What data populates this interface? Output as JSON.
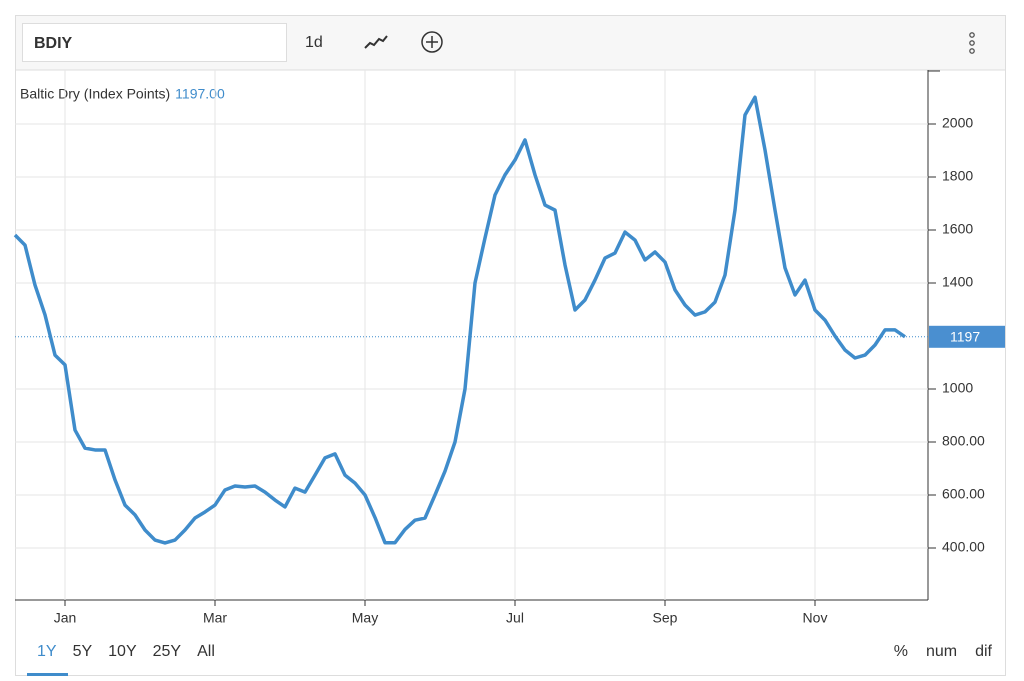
{
  "toolbar": {
    "symbol": "BDIY",
    "interval": "1d"
  },
  "range_buttons": [
    "1Y",
    "5Y",
    "10Y",
    "25Y",
    "All"
  ],
  "scale_buttons": [
    "%",
    "num",
    "dif"
  ],
  "chart_data": {
    "type": "line",
    "categories": [
      null,
      null,
      null,
      null,
      null,
      "Jan",
      null,
      null,
      null,
      null,
      null,
      null,
      null,
      null,
      null,
      null,
      null,
      null,
      null,
      null,
      "Mar",
      null,
      null,
      null,
      null,
      null,
      null,
      null,
      null,
      null,
      null,
      null,
      null,
      null,
      null,
      "May",
      null,
      null,
      null,
      null,
      null,
      null,
      null,
      null,
      null,
      null,
      null,
      null,
      null,
      null,
      "Jul",
      null,
      null,
      null,
      null,
      null,
      null,
      null,
      null,
      null,
      null,
      null,
      null,
      null,
      null,
      "Sep",
      null,
      null,
      null,
      null,
      null,
      null,
      null,
      null,
      null,
      null,
      null,
      null,
      null,
      null,
      "Nov",
      null,
      null,
      null,
      null,
      null,
      null,
      null,
      null,
      null
    ],
    "series": [
      {
        "name": "Baltic Dry (Index Points)",
        "color": "#3f8ccb",
        "values": [
          1581,
          1543,
          1392,
          1280,
          1128,
          1091,
          845,
          777,
          770,
          770,
          657,
          562,
          525,
          468,
          430,
          419,
          430,
          468,
          513,
          536,
          562,
          619,
          634,
          630,
          634,
          611,
          581,
          555,
          626,
          611,
          675,
          740,
          755,
          675,
          645,
          600,
          515,
          420,
          420,
          470,
          505,
          513,
          600,
          690,
          800,
          1000,
          1400,
          1570,
          1732,
          1808,
          1864,
          1940,
          1808,
          1694,
          1675,
          1468,
          1298,
          1336,
          1411,
          1494,
          1513,
          1592,
          1562,
          1487,
          1517,
          1479,
          1374,
          1317,
          1279,
          1291,
          1328,
          1430,
          1675,
          2034,
          2101,
          1902,
          1675,
          1457,
          1355,
          1411,
          1298,
          1260,
          1200,
          1147,
          1117,
          1128,
          1166,
          1223,
          1223,
          1197
        ]
      }
    ],
    "price_line": {
      "value": 1197,
      "tag_label": "1197",
      "legend_label": "1197.00"
    },
    "ylim": [
      200,
      2200
    ],
    "yticks": [
      2000,
      1800,
      1600,
      1400,
      1000,
      {
        "value": 800,
        "label": "800.00"
      },
      {
        "value": 600,
        "label": "600.00"
      },
      {
        "value": 400,
        "label": "400.00"
      }
    ],
    "grid": true
  }
}
